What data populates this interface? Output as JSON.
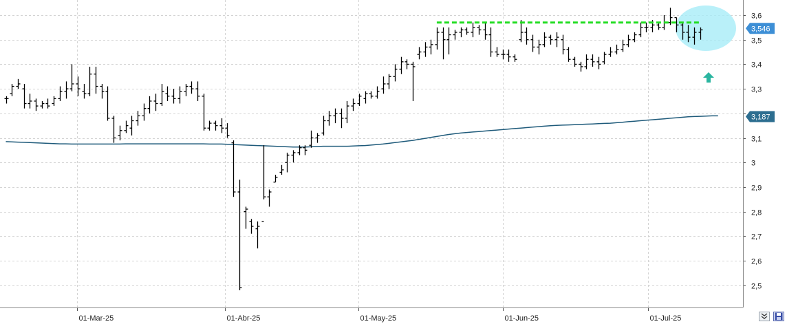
{
  "chart_data": {
    "type": "ohlc",
    "title": "",
    "xlabel": "",
    "ylabel": "",
    "ylim": [
      2.45,
      3.64
    ],
    "y_ticks": [
      "3,6",
      "3,5",
      "3,4",
      "3,3",
      "3,2",
      "3,1",
      "3",
      "2,9",
      "2,8",
      "2,7",
      "2,6",
      "2,5"
    ],
    "y_tick_values": [
      3.6,
      3.5,
      3.4,
      3.3,
      3.2,
      3.1,
      3.0,
      2.9,
      2.8,
      2.7,
      2.6,
      2.5
    ],
    "x_ticks": [
      "01-Mar-25",
      "01-Abr-25",
      "01-May-25",
      "01-Jun-25",
      "01-Jul-25"
    ],
    "last_price_label": "3,546",
    "ma_label": "3,187",
    "grid": true,
    "colors": {
      "bars": "#000000",
      "moving_average": "#1e5a7a",
      "resistance_line": "#22dd22",
      "highlight_ellipse": "#a8ecf7",
      "up_arrow": "#2ab5a0",
      "last_price_badge": "#3d8fd6",
      "ma_badge": "#2d6e90",
      "grid": "#d3d3d3"
    },
    "bars": [
      [
        3.26,
        3.27,
        3.24,
        3.26
      ],
      [
        3.28,
        3.32,
        3.27,
        3.31
      ],
      [
        3.31,
        3.34,
        3.3,
        3.32
      ],
      [
        3.3,
        3.32,
        3.22,
        3.24
      ],
      [
        3.24,
        3.28,
        3.22,
        3.25
      ],
      [
        3.25,
        3.26,
        3.21,
        3.23
      ],
      [
        3.23,
        3.25,
        3.22,
        3.24
      ],
      [
        3.24,
        3.26,
        3.22,
        3.23
      ],
      [
        3.24,
        3.27,
        3.23,
        3.26
      ],
      [
        3.26,
        3.31,
        3.25,
        3.29
      ],
      [
        3.29,
        3.33,
        3.26,
        3.3
      ],
      [
        3.3,
        3.4,
        3.29,
        3.32
      ],
      [
        3.32,
        3.35,
        3.27,
        3.3
      ],
      [
        3.29,
        3.32,
        3.26,
        3.28
      ],
      [
        3.28,
        3.39,
        3.27,
        3.36
      ],
      [
        3.36,
        3.39,
        3.28,
        3.31
      ],
      [
        3.31,
        3.32,
        3.26,
        3.29
      ],
      [
        3.29,
        3.31,
        3.17,
        3.18
      ],
      [
        3.18,
        3.19,
        3.08,
        3.1
      ],
      [
        3.11,
        3.15,
        3.09,
        3.13
      ],
      [
        3.13,
        3.17,
        3.12,
        3.15
      ],
      [
        3.14,
        3.19,
        3.11,
        3.17
      ],
      [
        3.17,
        3.21,
        3.15,
        3.19
      ],
      [
        3.19,
        3.24,
        3.17,
        3.22
      ],
      [
        3.22,
        3.27,
        3.2,
        3.25
      ],
      [
        3.25,
        3.28,
        3.21,
        3.24
      ],
      [
        3.24,
        3.32,
        3.23,
        3.29
      ],
      [
        3.28,
        3.31,
        3.25,
        3.27
      ],
      [
        3.27,
        3.3,
        3.24,
        3.26
      ],
      [
        3.26,
        3.31,
        3.24,
        3.29
      ],
      [
        3.29,
        3.32,
        3.27,
        3.31
      ],
      [
        3.31,
        3.33,
        3.28,
        3.3
      ],
      [
        3.3,
        3.33,
        3.25,
        3.27
      ],
      [
        3.27,
        3.28,
        3.13,
        3.14
      ],
      [
        3.14,
        3.17,
        3.13,
        3.16
      ],
      [
        3.16,
        3.17,
        3.13,
        3.15
      ],
      [
        3.15,
        3.18,
        3.12,
        3.14
      ],
      [
        3.14,
        3.16,
        3.1,
        3.11
      ],
      [
        3.08,
        3.09,
        2.86,
        2.88
      ],
      [
        2.88,
        2.93,
        2.48,
        2.49
      ],
      [
        2.8,
        2.82,
        2.73,
        2.81
      ],
      [
        2.76,
        2.77,
        2.71,
        2.74
      ],
      [
        2.73,
        2.76,
        2.65,
        2.74
      ],
      [
        2.76,
        3.07,
        2.85,
        2.86
      ],
      [
        2.86,
        2.89,
        2.82,
        2.88
      ],
      [
        2.92,
        2.95,
        2.92,
        2.94
      ],
      [
        2.96,
        2.99,
        2.95,
        2.97
      ],
      [
        3.0,
        3.04,
        2.96,
        3.03
      ],
      [
        3.03,
        3.05,
        3.0,
        3.04
      ],
      [
        3.04,
        3.07,
        3.03,
        3.06
      ],
      [
        3.06,
        3.07,
        3.03,
        3.05
      ],
      [
        3.07,
        3.13,
        3.06,
        3.1
      ],
      [
        3.1,
        3.12,
        3.08,
        3.11
      ],
      [
        3.12,
        3.19,
        3.11,
        3.17
      ],
      [
        3.17,
        3.21,
        3.15,
        3.19
      ],
      [
        3.19,
        3.22,
        3.16,
        3.2
      ],
      [
        3.2,
        3.22,
        3.14,
        3.18
      ],
      [
        3.18,
        3.25,
        3.16,
        3.23
      ],
      [
        3.23,
        3.26,
        3.21,
        3.24
      ],
      [
        3.24,
        3.28,
        3.23,
        3.27
      ],
      [
        3.26,
        3.29,
        3.24,
        3.28
      ],
      [
        3.28,
        3.29,
        3.26,
        3.27
      ],
      [
        3.27,
        3.31,
        3.26,
        3.29
      ],
      [
        3.3,
        3.35,
        3.28,
        3.32
      ],
      [
        3.32,
        3.36,
        3.3,
        3.35
      ],
      [
        3.35,
        3.4,
        3.33,
        3.38
      ],
      [
        3.38,
        3.43,
        3.36,
        3.41
      ],
      [
        3.41,
        3.42,
        3.38,
        3.4
      ],
      [
        3.4,
        3.41,
        3.25,
        3.39
      ],
      [
        3.44,
        3.47,
        3.42,
        3.45
      ],
      [
        3.45,
        3.49,
        3.43,
        3.47
      ],
      [
        3.47,
        3.5,
        3.44,
        3.48
      ],
      [
        3.48,
        3.55,
        3.46,
        3.53
      ],
      [
        3.53,
        3.55,
        3.42,
        3.5
      ],
      [
        3.5,
        3.55,
        3.44,
        3.52
      ],
      [
        3.52,
        3.54,
        3.5,
        3.53
      ],
      [
        3.53,
        3.55,
        3.51,
        3.54
      ],
      [
        3.54,
        3.55,
        3.52,
        3.53
      ],
      [
        3.53,
        3.57,
        3.51,
        3.55
      ],
      [
        3.55,
        3.56,
        3.52,
        3.54
      ],
      [
        3.54,
        3.57,
        3.5,
        3.52
      ],
      [
        3.52,
        3.55,
        3.43,
        3.45
      ],
      [
        3.45,
        3.47,
        3.43,
        3.44
      ],
      [
        3.44,
        3.46,
        3.42,
        3.44
      ],
      [
        3.44,
        3.46,
        3.41,
        3.43
      ],
      [
        3.43,
        3.44,
        3.41,
        3.42
      ],
      [
        3.5,
        3.58,
        3.49,
        3.53
      ],
      [
        3.53,
        3.55,
        3.48,
        3.5
      ],
      [
        3.5,
        3.52,
        3.45,
        3.47
      ],
      [
        3.47,
        3.5,
        3.44,
        3.48
      ],
      [
        3.48,
        3.53,
        3.47,
        3.51
      ],
      [
        3.51,
        3.52,
        3.48,
        3.5
      ],
      [
        3.5,
        3.53,
        3.47,
        3.51
      ],
      [
        3.5,
        3.52,
        3.44,
        3.46
      ],
      [
        3.46,
        3.47,
        3.41,
        3.42
      ],
      [
        3.42,
        3.43,
        3.39,
        3.4
      ],
      [
        3.4,
        3.41,
        3.37,
        3.39
      ],
      [
        3.39,
        3.44,
        3.38,
        3.42
      ],
      [
        3.42,
        3.44,
        3.39,
        3.41
      ],
      [
        3.41,
        3.43,
        3.38,
        3.4
      ],
      [
        3.41,
        3.45,
        3.4,
        3.44
      ],
      [
        3.44,
        3.47,
        3.43,
        3.45
      ],
      [
        3.45,
        3.48,
        3.44,
        3.46
      ],
      [
        3.46,
        3.5,
        3.45,
        3.48
      ],
      [
        3.48,
        3.52,
        3.47,
        3.5
      ],
      [
        3.5,
        3.53,
        3.49,
        3.52
      ],
      [
        3.52,
        3.57,
        3.51,
        3.55
      ],
      [
        3.55,
        3.57,
        3.53,
        3.55
      ],
      [
        3.55,
        3.58,
        3.53,
        3.56
      ],
      [
        3.56,
        3.57,
        3.54,
        3.55
      ],
      [
        3.55,
        3.6,
        3.54,
        3.57
      ],
      [
        3.57,
        3.63,
        3.56,
        3.59
      ],
      [
        3.59,
        3.59,
        3.53,
        3.56
      ],
      [
        3.56,
        3.57,
        3.5,
        3.53
      ],
      [
        3.53,
        3.56,
        3.49,
        3.51
      ],
      [
        3.51,
        3.55,
        3.48,
        3.53
      ],
      [
        3.53,
        3.55,
        3.5,
        3.54
      ]
    ],
    "moving_average": [
      3.085,
      3.084,
      3.083,
      3.082,
      3.081,
      3.08,
      3.079,
      3.078,
      3.077,
      3.076,
      3.076,
      3.075,
      3.075,
      3.075,
      3.075,
      3.075,
      3.075,
      3.075,
      3.075,
      3.075,
      3.076,
      3.076,
      3.076,
      3.076,
      3.076,
      3.076,
      3.076,
      3.076,
      3.076,
      3.076,
      3.076,
      3.076,
      3.076,
      3.076,
      3.075,
      3.075,
      3.075,
      3.074,
      3.073,
      3.072,
      3.071,
      3.07,
      3.069,
      3.068,
      3.067,
      3.066,
      3.065,
      3.064,
      3.063,
      3.063,
      3.063,
      3.064,
      3.065,
      3.066,
      3.066,
      3.066,
      3.066,
      3.066,
      3.067,
      3.068,
      3.069,
      3.071,
      3.073,
      3.075,
      3.078,
      3.081,
      3.084,
      3.087,
      3.09,
      3.094,
      3.098,
      3.102,
      3.106,
      3.11,
      3.114,
      3.117,
      3.12,
      3.122,
      3.124,
      3.126,
      3.128,
      3.13,
      3.132,
      3.134,
      3.136,
      3.138,
      3.14,
      3.142,
      3.144,
      3.146,
      3.148,
      3.15,
      3.151,
      3.152,
      3.153,
      3.154,
      3.155,
      3.156,
      3.157,
      3.158,
      3.159,
      3.16,
      3.162,
      3.164,
      3.166,
      3.168,
      3.17,
      3.172,
      3.174,
      3.176,
      3.178,
      3.18,
      3.182,
      3.184,
      3.186,
      3.187,
      3.188,
      3.189,
      3.19,
      3.19
    ],
    "resistance_level": 3.57,
    "resistance_from_bar": 72,
    "resistance_to_bar": 116
  },
  "toolbar": {
    "zoom_icon": "double-chevron-down-icon",
    "save_icon": "floppy-disk-icon"
  }
}
